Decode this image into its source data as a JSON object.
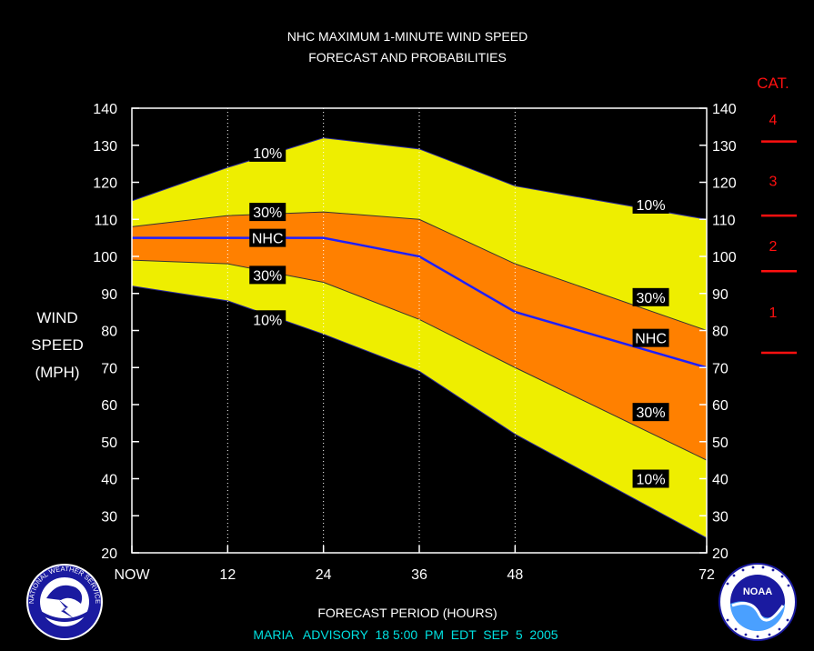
{
  "chart_data": {
    "type": "area",
    "title": "NHC MAXIMUM 1-MINUTE WIND SPEED",
    "subtitle": "FORECAST AND PROBABILITIES",
    "xlabel": "FORECAST PERIOD (HOURS)",
    "ylabel_lines": [
      "WIND",
      "SPEED",
      "(MPH)"
    ],
    "footer": "MARIA   ADVISORY  18 5:00  PM  EDT  SEP  5  2005",
    "xlim": [
      0,
      72
    ],
    "ylim": [
      20,
      140
    ],
    "x_ticks": [
      {
        "x": 0,
        "label": "NOW"
      },
      {
        "x": 12,
        "label": "12"
      },
      {
        "x": 24,
        "label": "24"
      },
      {
        "x": 36,
        "label": "36"
      },
      {
        "x": 48,
        "label": "48"
      },
      {
        "x": 72,
        "label": "72"
      }
    ],
    "y_ticks": [
      20,
      30,
      40,
      50,
      60,
      70,
      80,
      90,
      100,
      110,
      120,
      130,
      140
    ],
    "x": [
      0,
      12,
      24,
      36,
      48,
      72
    ],
    "series": [
      {
        "name": "10%",
        "role": "upper",
        "values": [
          115,
          124,
          132,
          129,
          119,
          110
        ]
      },
      {
        "name": "30%",
        "role": "upper",
        "values": [
          108,
          111,
          112,
          110,
          98,
          80
        ]
      },
      {
        "name": "NHC",
        "role": "forecast",
        "values": [
          105,
          105,
          105,
          100,
          85,
          70
        ]
      },
      {
        "name": "30%",
        "role": "lower",
        "values": [
          99,
          98,
          93,
          83,
          70,
          45
        ]
      },
      {
        "name": "10%",
        "role": "lower",
        "values": [
          92,
          88,
          79,
          69,
          52,
          24
        ]
      }
    ],
    "band_labels": [
      {
        "text": "10%",
        "x": 17,
        "y": 128
      },
      {
        "text": "30%",
        "x": 17,
        "y": 112
      },
      {
        "text": "NHC",
        "x": 17,
        "y": 105
      },
      {
        "text": "30%",
        "x": 17,
        "y": 95
      },
      {
        "text": "10%",
        "x": 17,
        "y": 83
      },
      {
        "text": "10%",
        "x": 65,
        "y": 114
      },
      {
        "text": "30%",
        "x": 65,
        "y": 89
      },
      {
        "text": "NHC",
        "x": 65,
        "y": 78
      },
      {
        "text": "30%",
        "x": 65,
        "y": 58
      },
      {
        "text": "10%",
        "x": 65,
        "y": 40
      }
    ],
    "category_scale": {
      "title": "CAT.",
      "labels": [
        {
          "text": "4",
          "y": 137
        },
        {
          "text": "3",
          "y": 120.5
        },
        {
          "text": "2",
          "y": 103
        },
        {
          "text": "1",
          "y": 85
        }
      ],
      "thresholds": [
        131,
        111,
        96,
        74
      ]
    },
    "colors": {
      "background": "#000000",
      "outer_band": "#eeee00",
      "inner_band": "#ff8000",
      "forecast_line": "#1f1fff",
      "axis_text": "#ffffff",
      "footer_text": "#00e0e0",
      "category": "#ff1010",
      "plot_border": "#ffffff"
    },
    "grid": "vertical-dotted",
    "logos": [
      "nws-logo",
      "noaa-logo"
    ],
    "logo_texts": {
      "nws": "NATIONAL WEATHER SERVICE",
      "noaa": "NOAA"
    }
  }
}
